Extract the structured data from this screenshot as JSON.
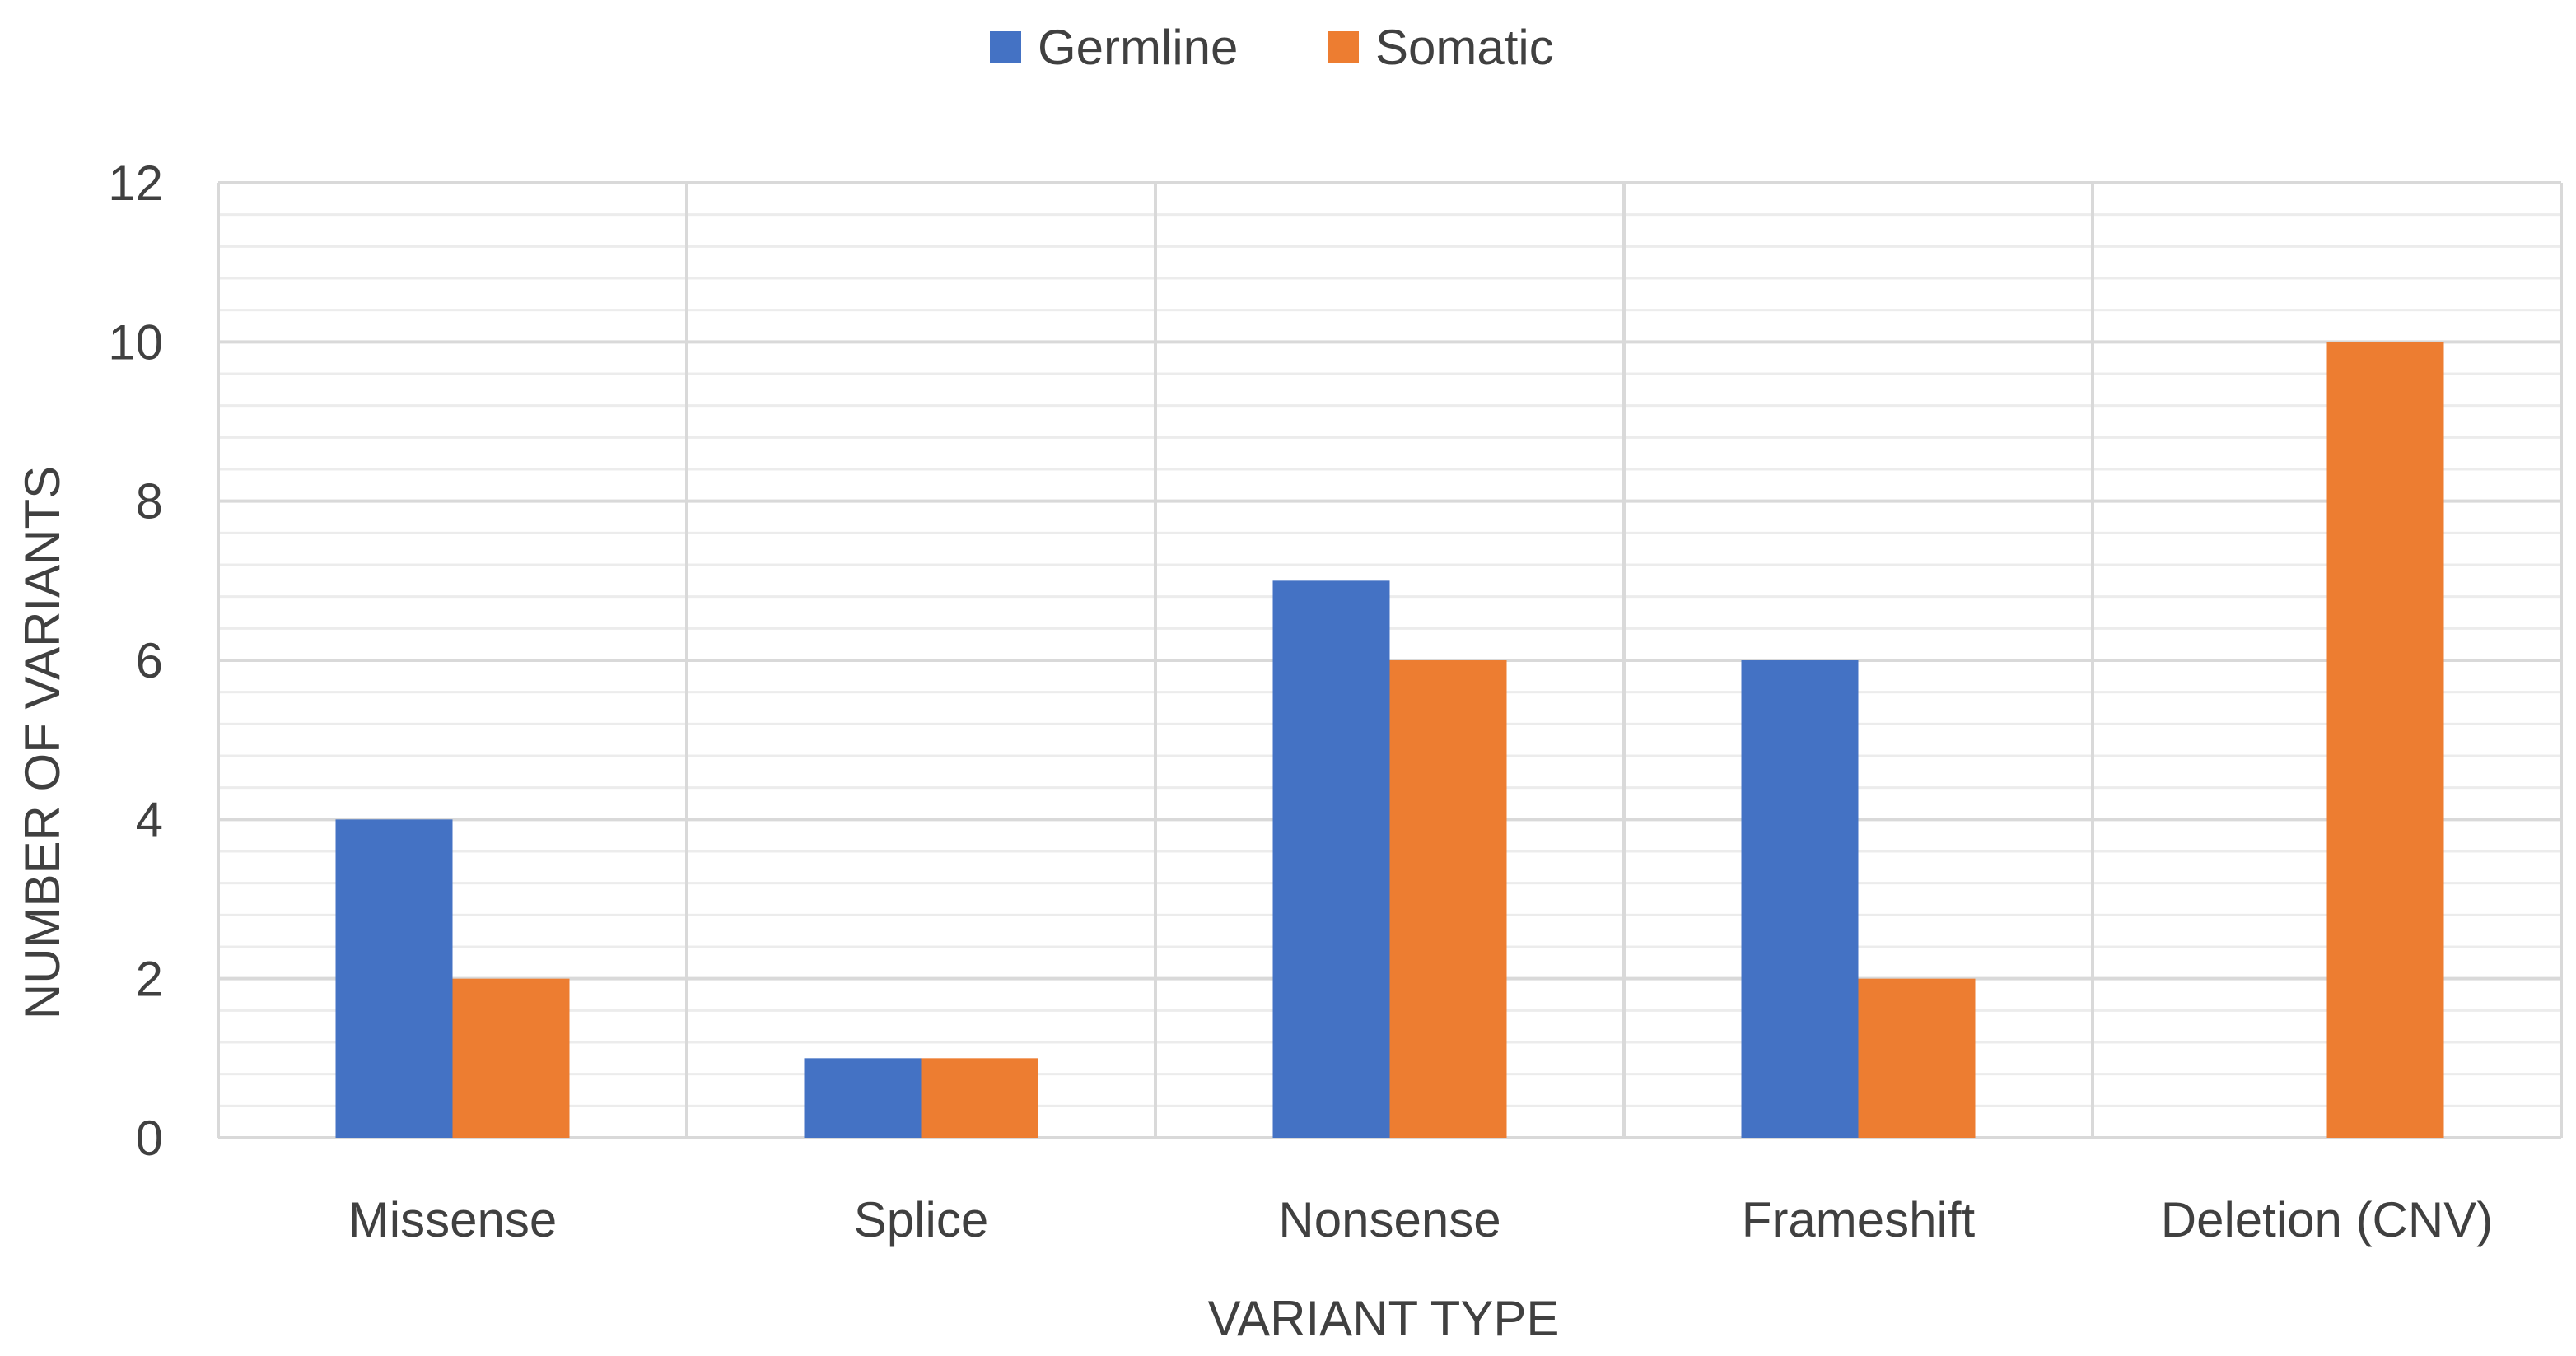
{
  "chart_data": {
    "type": "bar",
    "title": "",
    "xlabel": "VARIANT TYPE",
    "ylabel": "NUMBER OF VARIANTS",
    "categories": [
      "Missense",
      "Splice",
      "Nonsense",
      "Frameshift",
      "Deletion (CNV)"
    ],
    "series": [
      {
        "name": "Germline",
        "color": "#4472C4",
        "values": [
          4,
          1,
          7,
          6,
          0
        ]
      },
      {
        "name": "Somatic",
        "color": "#ED7D31",
        "values": [
          2,
          1,
          6,
          2,
          10
        ]
      }
    ],
    "ylim": [
      0,
      12
    ],
    "yticks": [
      "0",
      "2",
      "4",
      "6",
      "8",
      "10",
      "12"
    ],
    "grid": true,
    "legend_position": "top-center"
  }
}
